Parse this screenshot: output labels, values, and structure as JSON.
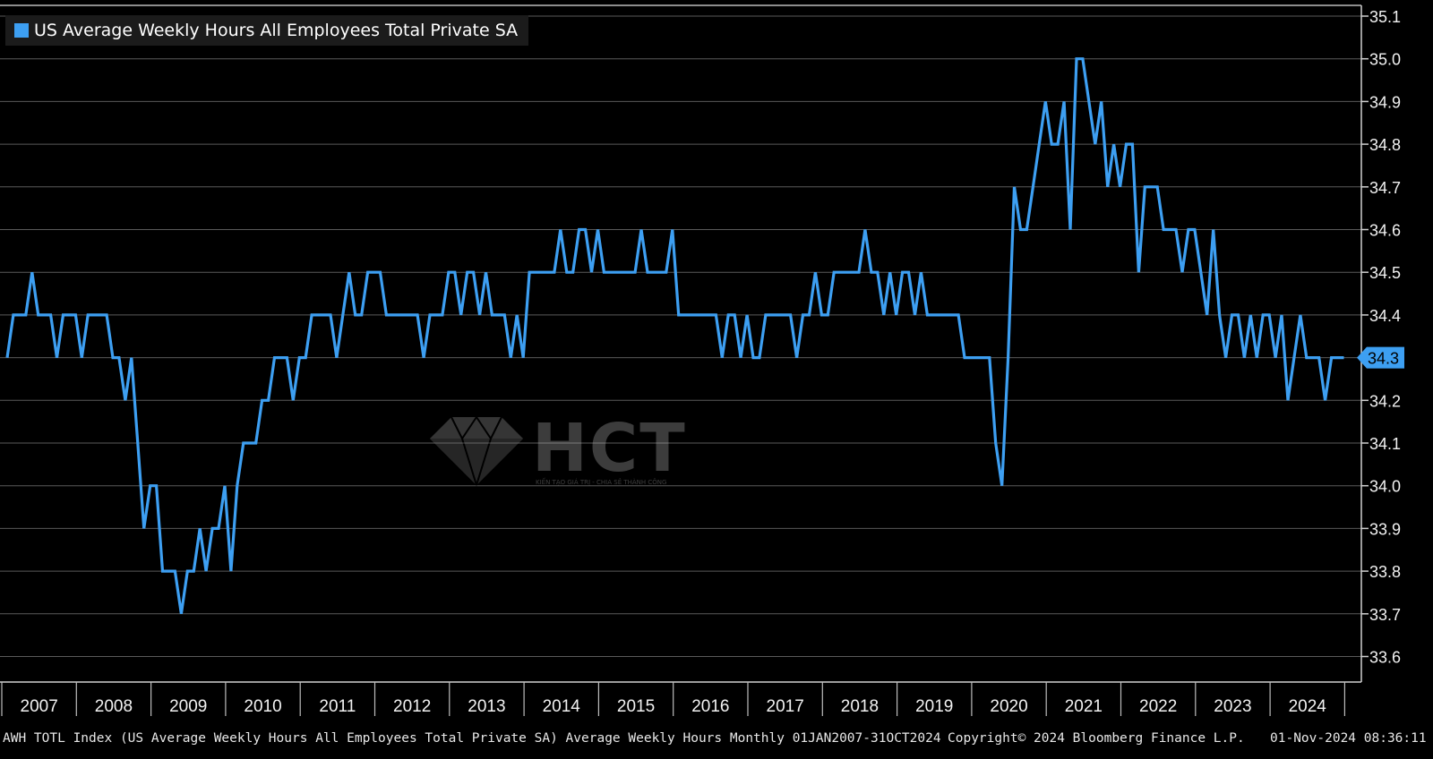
{
  "legend": {
    "label": "US Average Weekly Hours All Employees Total Private SA",
    "color": "#3d9ff2"
  },
  "watermark": {
    "text": "HCT",
    "subtext": "KIẾN TẠO GIÁ TRỊ - CHIA SẺ THÀNH CÔNG"
  },
  "footer": {
    "description": "AWH TOTL Index (US Average Weekly Hours All Employees Total Private SA) Average Weekly Hours  Monthly 01JAN2007-31OCT2024",
    "copyright": "Copyright© 2024 Bloomberg Finance L.P.",
    "timestamp": "01-Nov-2024 08:36:11"
  },
  "chart_data": {
    "type": "line",
    "title": "",
    "xlabel": "",
    "ylabel": "",
    "x_range": [
      "2007-01",
      "2024-10"
    ],
    "ylim": [
      33.6,
      35.1
    ],
    "y_ticks": [
      "33.6",
      "33.7",
      "33.8",
      "33.9",
      "34.0",
      "34.1",
      "34.2",
      "34.3",
      "34.4",
      "34.5",
      "34.6",
      "34.7",
      "34.8",
      "34.9",
      "35.0",
      "35.1"
    ],
    "x_tick_labels": [
      "2007",
      "2008",
      "2009",
      "2010",
      "2011",
      "2012",
      "2013",
      "2014",
      "2015",
      "2016",
      "2017",
      "2018",
      "2019",
      "2020",
      "2021",
      "2022",
      "2023",
      "2024"
    ],
    "grid": "horizontal",
    "legend_position": "top-left",
    "last_value_label": "34.3",
    "series": [
      {
        "name": "US Average Weekly Hours All Employees Total Private SA",
        "color": "#3d9ff2",
        "start": "2007-01",
        "frequency": "monthly",
        "values": [
          34.3,
          34.4,
          34.4,
          34.4,
          34.5,
          34.4,
          34.4,
          34.4,
          34.3,
          34.4,
          34.4,
          34.4,
          34.3,
          34.4,
          34.4,
          34.4,
          34.4,
          34.3,
          34.3,
          34.2,
          34.3,
          34.1,
          33.9,
          34.0,
          34.0,
          33.8,
          33.8,
          33.8,
          33.7,
          33.8,
          33.8,
          33.9,
          33.8,
          33.9,
          33.9,
          34.0,
          33.8,
          34.0,
          34.1,
          34.1,
          34.1,
          34.2,
          34.2,
          34.3,
          34.3,
          34.3,
          34.2,
          34.3,
          34.3,
          34.4,
          34.4,
          34.4,
          34.4,
          34.3,
          34.4,
          34.5,
          34.4,
          34.4,
          34.5,
          34.5,
          34.5,
          34.4,
          34.4,
          34.4,
          34.4,
          34.4,
          34.4,
          34.3,
          34.4,
          34.4,
          34.4,
          34.5,
          34.5,
          34.4,
          34.5,
          34.5,
          34.4,
          34.5,
          34.4,
          34.4,
          34.4,
          34.3,
          34.4,
          34.3,
          34.5,
          34.5,
          34.5,
          34.5,
          34.5,
          34.6,
          34.5,
          34.5,
          34.6,
          34.6,
          34.5,
          34.6,
          34.5,
          34.5,
          34.5,
          34.5,
          34.5,
          34.5,
          34.6,
          34.5,
          34.5,
          34.5,
          34.5,
          34.6,
          34.4,
          34.4,
          34.4,
          34.4,
          34.4,
          34.4,
          34.4,
          34.3,
          34.4,
          34.4,
          34.3,
          34.4,
          34.3,
          34.3,
          34.4,
          34.4,
          34.4,
          34.4,
          34.4,
          34.3,
          34.4,
          34.4,
          34.5,
          34.4,
          34.4,
          34.5,
          34.5,
          34.5,
          34.5,
          34.5,
          34.6,
          34.5,
          34.5,
          34.4,
          34.5,
          34.4,
          34.5,
          34.5,
          34.4,
          34.5,
          34.4,
          34.4,
          34.4,
          34.4,
          34.4,
          34.4,
          34.3,
          34.3,
          34.3,
          34.3,
          34.3,
          34.1,
          34.0,
          34.3,
          34.7,
          34.6,
          34.6,
          34.7,
          34.8,
          34.9,
          34.8,
          34.8,
          34.9,
          34.6,
          35.0,
          35.0,
          34.9,
          34.8,
          34.9,
          34.7,
          34.8,
          34.7,
          34.8,
          34.8,
          34.5,
          34.7,
          34.7,
          34.7,
          34.6,
          34.6,
          34.6,
          34.5,
          34.6,
          34.6,
          34.5,
          34.4,
          34.6,
          34.4,
          34.3,
          34.4,
          34.4,
          34.3,
          34.4,
          34.3,
          34.4,
          34.4,
          34.3,
          34.4,
          34.2,
          34.3,
          34.4,
          34.3,
          34.3,
          34.3,
          34.2,
          34.3,
          34.3,
          34.3
        ]
      }
    ]
  }
}
